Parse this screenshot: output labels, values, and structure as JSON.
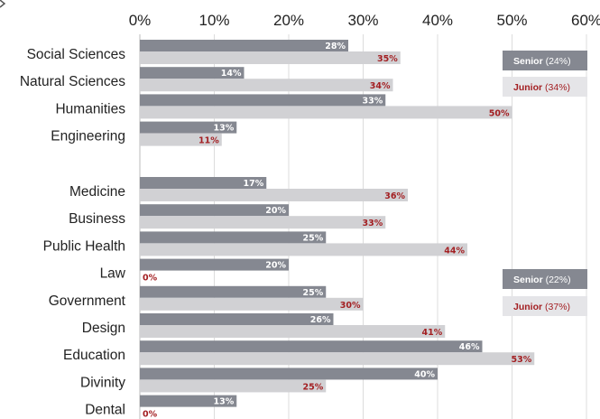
{
  "chart_data": {
    "type": "bar",
    "orientation": "horizontal",
    "xlim": [
      0,
      60
    ],
    "x_ticks": [
      "0%",
      "10%",
      "20%",
      "30%",
      "40%",
      "50%",
      "60%"
    ],
    "grid": true,
    "colors": {
      "senior": "#858891",
      "junior": "#d1d1d4",
      "junior_text": "#a31f22",
      "senior_text": "#ffffff",
      "legend_junior_bg": "#e5e5e8"
    },
    "groups": [
      {
        "categories": [
          "Social Sciences",
          "Natural Sciences",
          "Humanities",
          "Engineering"
        ],
        "series": [
          {
            "name": "Senior",
            "values": [
              28,
              14,
              33,
              13
            ],
            "labels": [
              "28%",
              "14%",
              "33%",
              "13%"
            ]
          },
          {
            "name": "Junior",
            "values": [
              35,
              34,
              50,
              11
            ],
            "labels": [
              "35%",
              "34%",
              "50%",
              "11%"
            ]
          }
        ],
        "legend": [
          {
            "series": "Senior",
            "label": "Senior",
            "average": "(24%)"
          },
          {
            "series": "Junior",
            "label": "Junior",
            "average": "(34%)"
          }
        ]
      },
      {
        "categories": [
          "Medicine",
          "Business",
          "Public Health",
          "Law",
          "Government",
          "Design",
          "Education",
          "Divinity",
          "Dental"
        ],
        "series": [
          {
            "name": "Senior",
            "values": [
              17,
              20,
              25,
              20,
              25,
              26,
              46,
              40,
              13
            ],
            "labels": [
              "17%",
              "20%",
              "25%",
              "20%",
              "25%",
              "26%",
              "46%",
              "40%",
              "13%"
            ]
          },
          {
            "name": "Junior",
            "values": [
              36,
              33,
              44,
              0,
              30,
              41,
              53,
              25,
              0
            ],
            "labels": [
              "36%",
              "33%",
              "44%",
              "0%",
              "30%",
              "41%",
              "53%",
              "25%",
              "0%"
            ]
          }
        ],
        "legend": [
          {
            "series": "Senior",
            "label": "Senior",
            "average": "(22%)"
          },
          {
            "series": "Junior",
            "label": "Junior",
            "average": "(37%)"
          }
        ]
      }
    ]
  }
}
